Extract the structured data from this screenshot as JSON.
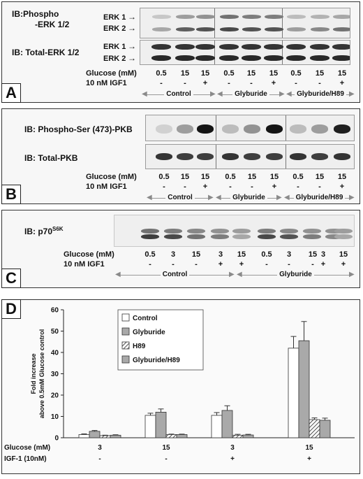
{
  "panels": {
    "A": {
      "letter": "A",
      "rows": {
        "phospho_line1": "IB:Phospho",
        "phospho_line2": "-ERK 1/2",
        "total": "IB: Total-ERK 1/2",
        "erk1": "ERK 1",
        "erk2": "ERK 2"
      },
      "glucose_label": "Glucose (mM)",
      "igf_label": "10 nM IGF1",
      "glucose": [
        "0.5",
        "15",
        "15",
        "0.5",
        "15",
        "15",
        "0.5",
        "15",
        "15"
      ],
      "igf": [
        "-",
        "-",
        "+",
        "-",
        "-",
        "+",
        "-",
        "-",
        "+"
      ],
      "groups": [
        "Control",
        "Glyburide",
        "Glyburide/H89"
      ]
    },
    "B": {
      "letter": "B",
      "rows": {
        "phospho": "IB: Phospho-Ser (473)-PKB",
        "total": "IB: Total-PKB"
      },
      "glucose_label": "Glucose (mM)",
      "igf_label": "10 nM IGF1",
      "glucose": [
        "0.5",
        "15",
        "15",
        "0.5",
        "15",
        "15",
        "0.5",
        "15",
        "15"
      ],
      "igf": [
        "-",
        "-",
        "+",
        "-",
        "-",
        "+",
        "-",
        "-",
        "+"
      ],
      "groups": [
        "Control",
        "Glyburide",
        "Glyburide/H89"
      ]
    },
    "C": {
      "letter": "C",
      "rows": {
        "ib": "IB: p70",
        "ib_sup": "S6K"
      },
      "glucose_label": "Glucose (mM)",
      "igf_label": "10 nM IGF1",
      "glucose": [
        "0.5",
        "3",
        "15",
        "3",
        "15",
        "0.5",
        "3",
        "15",
        "3",
        "15"
      ],
      "igf": [
        "-",
        "-",
        "-",
        "+",
        "+",
        "-",
        "-",
        "-",
        "+",
        "+"
      ],
      "groups": [
        "Control",
        "Glyburide"
      ]
    },
    "D": {
      "letter": "D",
      "glucose_label": "Glucose (mM)",
      "igf_label": "IGF-1 (10nM)",
      "glucose": [
        "3",
        "15",
        "3",
        "15"
      ],
      "igf": [
        "-",
        "-",
        "+",
        "+"
      ]
    }
  },
  "chart_data": {
    "type": "bar",
    "categories": [
      "3",
      "15",
      "3",
      "15"
    ],
    "series": [
      {
        "name": "Control",
        "values": [
          1.5,
          10.5,
          10.5,
          42
        ],
        "errors": [
          0.3,
          1.0,
          1.3,
          5.5
        ],
        "fill": "#ffffff"
      },
      {
        "name": "Glyburide",
        "values": [
          3.0,
          12.0,
          12.8,
          45.5
        ],
        "errors": [
          0.4,
          1.5,
          2.2,
          9.0
        ],
        "fill": "#a9a9a9"
      },
      {
        "name": "H89",
        "values": [
          1.0,
          1.5,
          1.2,
          8.5
        ],
        "errors": [
          0.2,
          0.2,
          0.4,
          0.8
        ],
        "fill": "hatch"
      },
      {
        "name": "Glyburide/H89",
        "values": [
          1.2,
          1.5,
          1.3,
          8.2
        ],
        "errors": [
          0.2,
          0.2,
          0.3,
          1.0
        ],
        "fill": "#a9a9a9"
      }
    ],
    "ylabel_line1": "Fold increase",
    "ylabel_line2": "above 0.5mM Glucose control",
    "ylim": [
      0,
      60
    ],
    "yticks": [
      0,
      10,
      20,
      30,
      40,
      50,
      60
    ],
    "legend_position": "top-left"
  }
}
